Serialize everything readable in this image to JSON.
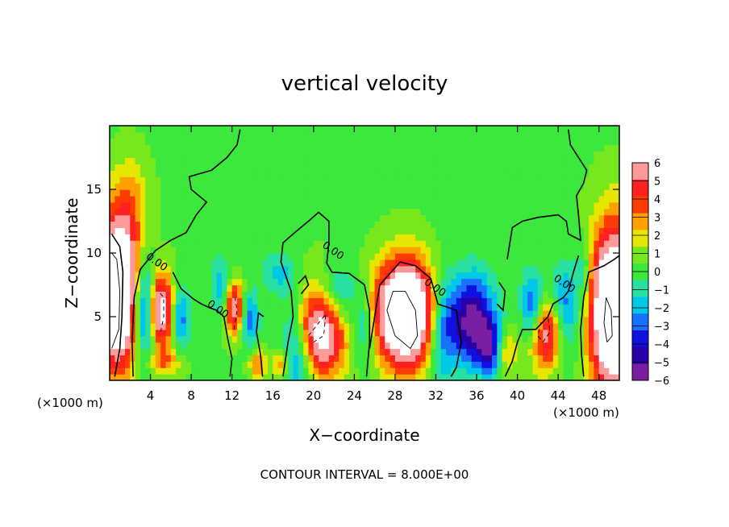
{
  "chart_data": {
    "type": "heatmap",
    "title": "vertical velocity",
    "xlabel": "X−coordinate",
    "ylabel": "Z−coordinate",
    "x_unit_left": "(×1000 m)",
    "x_unit_right": "(×1000 m)",
    "footer": "CONTOUR INTERVAL = 8.000E+00",
    "xlim": [
      0,
      50
    ],
    "ylim": [
      0,
      20
    ],
    "x_ticks": [
      4,
      8,
      12,
      16,
      20,
      24,
      28,
      32,
      36,
      40,
      44,
      48
    ],
    "y_ticks": [
      5,
      10,
      15
    ],
    "colorbar": {
      "min": -6,
      "max": 6,
      "tick_labels": [
        "6",
        "5",
        "4",
        "3",
        "2",
        "1",
        "0",
        "−1",
        "−2",
        "−3",
        "−4",
        "−5",
        "−6"
      ],
      "colors": [
        "#7a1fa2",
        "#2a00a8",
        "#1010e0",
        "#1870ff",
        "#00c8e6",
        "#28e0a0",
        "#3ce83c",
        "#78e81e",
        "#e6e600",
        "#ffa000",
        "#ff3c00",
        "#ff2020",
        "#ff9a9a"
      ]
    },
    "contour_label": "0.00",
    "features": [
      {
        "x": 0.8,
        "z": 7.0,
        "sx": 1.3,
        "sz": 4.0,
        "w": 12
      },
      {
        "x": 5.0,
        "z": 5.5,
        "sx": 1.0,
        "sz": 2.0,
        "w": 8
      },
      {
        "x": 12.2,
        "z": 5.8,
        "sx": 0.6,
        "sz": 1.5,
        "w": 6
      },
      {
        "x": 20.5,
        "z": 4.2,
        "sx": 1.8,
        "sz": 2.6,
        "w": 9
      },
      {
        "x": 29.0,
        "z": 5.3,
        "sx": 2.0,
        "sz": 2.8,
        "w": 12
      },
      {
        "x": 43.0,
        "z": 3.8,
        "sx": 1.4,
        "sz": 2.0,
        "w": 7
      },
      {
        "x": 49.5,
        "z": 5.5,
        "sx": 1.6,
        "sz": 4.5,
        "w": 12
      },
      {
        "x": 14.5,
        "z": 1.3,
        "sx": 0.6,
        "sz": 0.8,
        "w": 3
      },
      {
        "x": 16.8,
        "z": 1.3,
        "sx": 0.6,
        "sz": 0.8,
        "w": 3
      },
      {
        "x": 38.8,
        "z": 2.3,
        "sx": 0.7,
        "sz": 1.3,
        "w": 3.5
      },
      {
        "x": 5.5,
        "z": 1.5,
        "sx": 1.2,
        "sz": 0.8,
        "w": 2.5
      },
      {
        "x": 2.2,
        "z": 14.0,
        "sx": 1.2,
        "sz": 2.5,
        "w": 2
      },
      {
        "x": 3.5,
        "z": 5.5,
        "sx": 0.8,
        "sz": 2.5,
        "w": -6
      },
      {
        "x": 6.8,
        "z": 5.0,
        "sx": 0.7,
        "sz": 1.8,
        "w": -4
      },
      {
        "x": 11.0,
        "z": 7.5,
        "sx": 0.8,
        "sz": 1.5,
        "w": -2.5
      },
      {
        "x": 13.8,
        "z": 4.8,
        "sx": 0.6,
        "sz": 1.5,
        "w": -3
      },
      {
        "x": 18.5,
        "z": 3.0,
        "sx": 1.2,
        "sz": 3.0,
        "w": -5
      },
      {
        "x": 22.0,
        "z": 6.5,
        "sx": 1.5,
        "sz": 1.8,
        "w": -4
      },
      {
        "x": 25.0,
        "z": 4.0,
        "sx": 0.8,
        "sz": 2.0,
        "w": -2.5
      },
      {
        "x": 32.5,
        "z": 4.0,
        "sx": 1.0,
        "sz": 3.0,
        "w": -3.5
      },
      {
        "x": 35.5,
        "z": 4.8,
        "sx": 1.6,
        "sz": 2.5,
        "w": -6
      },
      {
        "x": 37.5,
        "z": 2.5,
        "sx": 1.0,
        "sz": 1.5,
        "w": -4
      },
      {
        "x": 41.5,
        "z": 5.5,
        "sx": 0.8,
        "sz": 2.0,
        "w": -5
      },
      {
        "x": 44.5,
        "z": 5.0,
        "sx": 1.0,
        "sz": 2.5,
        "w": -5
      },
      {
        "x": 46.5,
        "z": 8.5,
        "sx": 0.6,
        "sz": 2.0,
        "w": -2
      },
      {
        "x": 16.5,
        "z": 8.5,
        "sx": 1.2,
        "sz": 1.2,
        "w": -2
      }
    ],
    "contours": [
      [
        [
          0.5,
          0.3
        ],
        [
          1.0,
          2.5
        ],
        [
          1.2,
          5.0
        ],
        [
          1.3,
          8.5
        ],
        [
          1.0,
          10.5
        ],
        [
          0.2,
          11.5
        ]
      ],
      [
        [
          2.3,
          0.3
        ],
        [
          2.2,
          3.0
        ],
        [
          2.4,
          6.5
        ],
        [
          3.0,
          8.7
        ],
        [
          4.5,
          10.2
        ],
        [
          6.0,
          11.0
        ],
        [
          7.5,
          11.6
        ],
        [
          8.5,
          13.0
        ],
        [
          9.5,
          14.0
        ],
        [
          8.0,
          15.0
        ],
        [
          7.8,
          16.0
        ],
        [
          10.0,
          16.5
        ],
        [
          11.5,
          17.5
        ],
        [
          12.5,
          18.5
        ],
        [
          12.8,
          19.7
        ]
      ],
      [
        [
          6.2,
          8.5
        ],
        [
          7.0,
          7.2
        ],
        [
          8.2,
          6.4
        ],
        [
          9.0,
          6.0
        ],
        [
          9.8,
          5.7
        ],
        [
          10.5,
          5.5
        ],
        [
          11.2,
          5.0
        ],
        [
          11.6,
          3.2
        ],
        [
          12.0,
          1.7
        ],
        [
          11.8,
          0.3
        ]
      ],
      [
        [
          15.0,
          0.3
        ],
        [
          14.8,
          2.0
        ],
        [
          14.4,
          3.8
        ],
        [
          14.6,
          5.3
        ],
        [
          15.1,
          5.0
        ]
      ],
      [
        [
          17.0,
          0.3
        ],
        [
          17.5,
          3.0
        ],
        [
          18.0,
          5.0
        ],
        [
          17.8,
          7.0
        ],
        [
          16.8,
          9.3
        ],
        [
          17.0,
          10.8
        ],
        [
          18.0,
          11.5
        ],
        [
          19.5,
          12.5
        ],
        [
          20.5,
          13.2
        ],
        [
          21.5,
          12.5
        ],
        [
          21.5,
          10.8
        ],
        [
          21.3,
          9.2
        ],
        [
          21.8,
          8.5
        ],
        [
          23.5,
          8.4
        ],
        [
          25.0,
          7.5
        ],
        [
          25.5,
          5.5
        ],
        [
          25.5,
          3.0
        ],
        [
          25.2,
          0.3
        ]
      ],
      [
        [
          18.5,
          7.6
        ],
        [
          19.2,
          8.2
        ],
        [
          19.5,
          7.5
        ],
        [
          18.8,
          6.8
        ]
      ],
      [
        [
          25.5,
          2.5
        ],
        [
          26.0,
          5.0
        ],
        [
          26.5,
          7.5
        ],
        [
          28.5,
          9.3
        ],
        [
          30.0,
          9.0
        ],
        [
          31.5,
          8.0
        ],
        [
          32.2,
          6.0
        ],
        [
          34.0,
          5.5
        ],
        [
          34.5,
          3.0
        ],
        [
          34.0,
          1.0
        ],
        [
          33.5,
          0.3
        ]
      ],
      [
        [
          38.2,
          7.7
        ],
        [
          38.8,
          7.0
        ],
        [
          38.6,
          5.5
        ],
        [
          38.0,
          6.0
        ]
      ],
      [
        [
          38.8,
          0.3
        ],
        [
          39.5,
          1.5
        ],
        [
          40.0,
          3.0
        ],
        [
          40.5,
          4.0
        ],
        [
          41.8,
          4.0
        ],
        [
          43.0,
          5.0
        ],
        [
          43.5,
          6.0
        ],
        [
          44.5,
          6.5
        ],
        [
          45.0,
          7.0
        ],
        [
          45.5,
          8.5
        ],
        [
          46.0,
          9.8
        ]
      ],
      [
        [
          39.0,
          9.5
        ],
        [
          39.5,
          12.0
        ],
        [
          40.5,
          12.5
        ],
        [
          42.0,
          12.8
        ],
        [
          44.0,
          13.0
        ],
        [
          44.8,
          12.5
        ],
        [
          45.0,
          11.5
        ],
        [
          46.2,
          11.0
        ],
        [
          46.0,
          13.0
        ],
        [
          45.8,
          14.5
        ],
        [
          46.5,
          15.5
        ],
        [
          46.8,
          16.5
        ],
        [
          46.0,
          17.5
        ],
        [
          45.2,
          18.5
        ],
        [
          45.0,
          19.7
        ]
      ],
      [
        [
          46.5,
          0.3
        ],
        [
          46.3,
          2.0
        ],
        [
          46.2,
          4.0
        ],
        [
          46.5,
          6.5
        ],
        [
          47.0,
          8.5
        ],
        [
          48.5,
          9.0
        ],
        [
          49.5,
          9.5
        ],
        [
          50.0,
          9.8
        ]
      ]
    ],
    "dashed_contours": [
      [
        [
          5.0,
          3.8
        ],
        [
          5.3,
          5.0
        ],
        [
          5.3,
          6.5
        ],
        [
          4.8,
          7.0
        ]
      ],
      [
        [
          12.2,
          4.0
        ],
        [
          12.5,
          5.5
        ],
        [
          12.3,
          6.5
        ]
      ],
      [
        [
          19.5,
          3.5
        ],
        [
          20.5,
          4.5
        ],
        [
          21.2,
          5.2
        ],
        [
          21.0,
          3.5
        ],
        [
          20.0,
          3.0
        ]
      ],
      [
        [
          42.5,
          3.0
        ],
        [
          43.2,
          3.8
        ],
        [
          43.0,
          5.0
        ],
        [
          42.3,
          4.5
        ],
        [
          42.0,
          3.5
        ],
        [
          42.5,
          3.0
        ]
      ]
    ],
    "thin_contours": [
      [
        [
          0.2,
          2.5
        ],
        [
          0.9,
          4.0
        ],
        [
          1.0,
          7.0
        ],
        [
          0.7,
          9.5
        ],
        [
          0.2,
          10.0
        ]
      ],
      [
        [
          27.2,
          5.5
        ],
        [
          28.0,
          3.5
        ],
        [
          29.5,
          2.5
        ],
        [
          30.2,
          3.5
        ],
        [
          30.0,
          5.5
        ],
        [
          29.0,
          7.0
        ],
        [
          27.8,
          7.0
        ],
        [
          27.2,
          5.5
        ]
      ],
      [
        [
          48.8,
          3.0
        ],
        [
          48.5,
          4.5
        ],
        [
          48.7,
          6.5
        ],
        [
          49.2,
          5.5
        ],
        [
          49.3,
          3.5
        ],
        [
          48.8,
          3.0
        ]
      ]
    ],
    "contour_label_positions": [
      [
        3.5,
        9.6
      ],
      [
        9.5,
        5.9
      ],
      [
        20.8,
        10.5
      ],
      [
        30.8,
        7.6
      ],
      [
        43.5,
        7.9
      ]
    ]
  }
}
